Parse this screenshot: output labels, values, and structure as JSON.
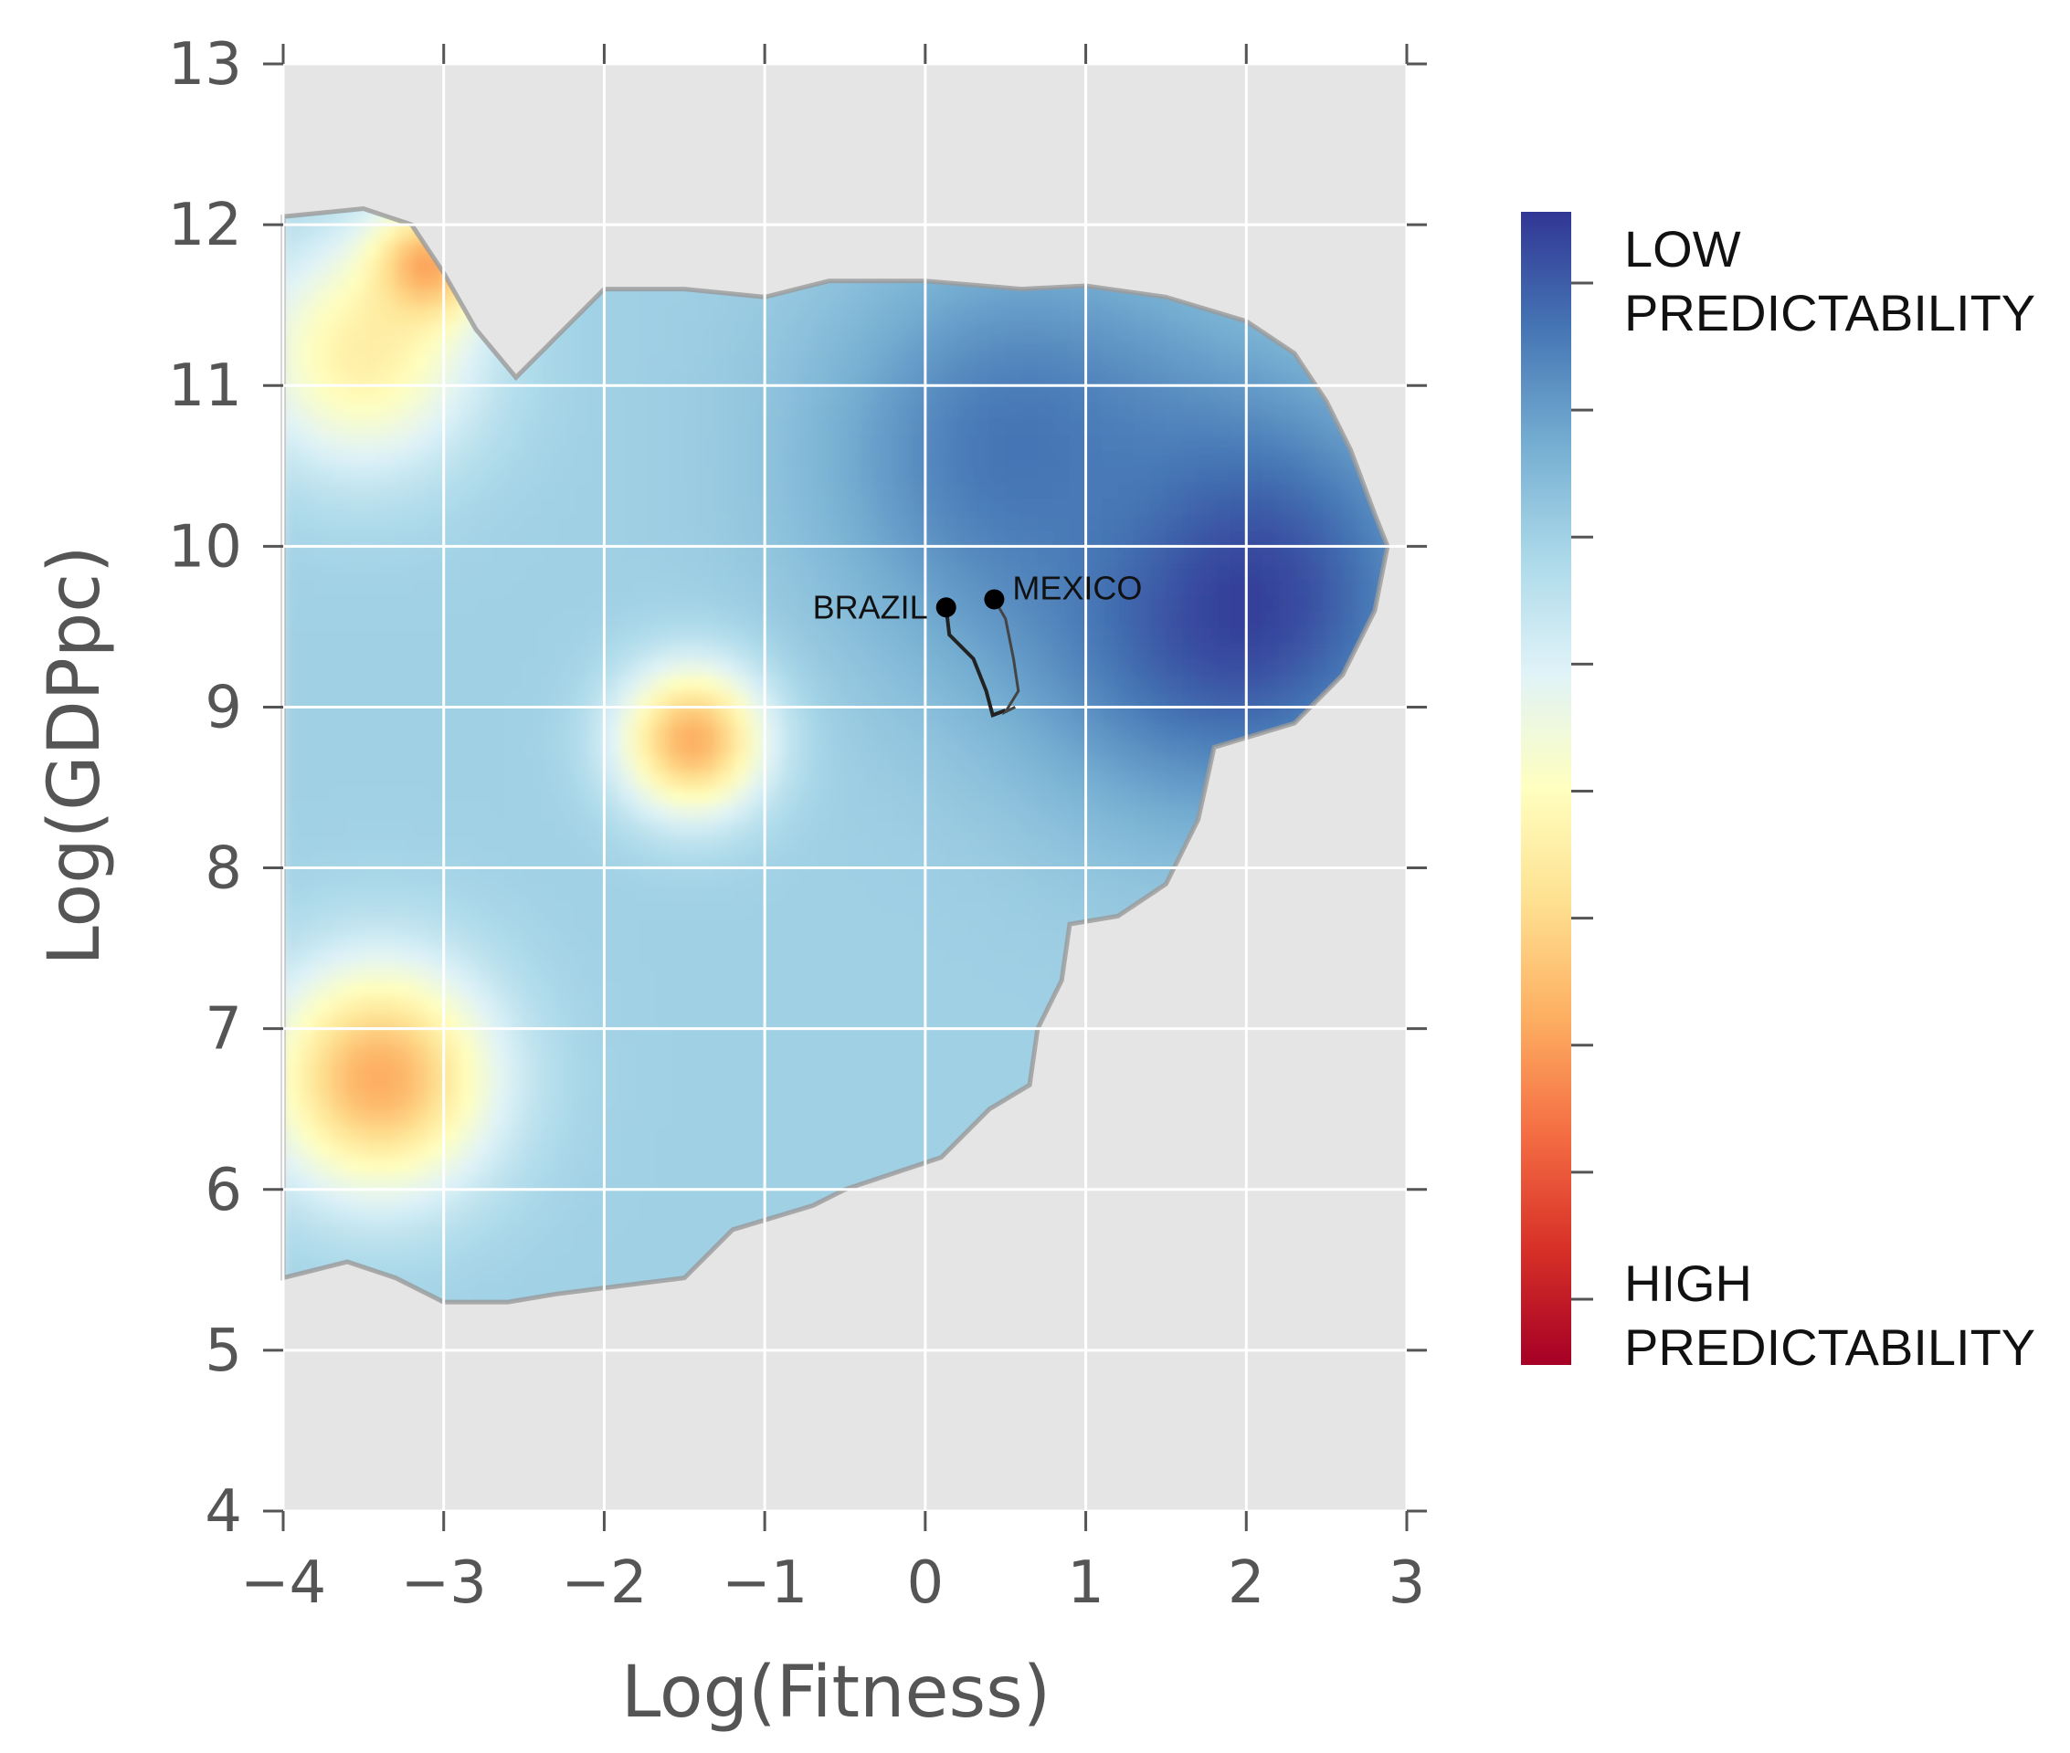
{
  "chart_data": {
    "type": "heatmap",
    "title": "",
    "xlabel": "Log(Fitness)",
    "ylabel": "Log(GDPpc)",
    "xlim": [
      -4,
      3
    ],
    "ylim": [
      4,
      13
    ],
    "xticks": [
      -4,
      -3,
      -2,
      -1,
      0,
      1,
      2,
      3
    ],
    "xtick_labels": [
      "−4",
      "−3",
      "−2",
      "−1",
      "0",
      "1",
      "2",
      "3"
    ],
    "yticks": [
      4,
      5,
      6,
      7,
      8,
      9,
      10,
      11,
      12,
      13
    ],
    "ytick_labels": [
      "4",
      "5",
      "6",
      "7",
      "8",
      "9",
      "10",
      "11",
      "12",
      "13"
    ],
    "grid": true,
    "background_color": "#e5e5e5",
    "colormap": "RdYlBu",
    "colorbar": {
      "top_label": [
        "LOW",
        "PREDICTABILITY"
      ],
      "bottom_label": [
        "HIGH",
        "PREDICTABILITY"
      ],
      "colors": [
        "#313695",
        "#4575b4",
        "#74add1",
        "#abd9e9",
        "#e0f3f8",
        "#ffffbf",
        "#fee090",
        "#fdae61",
        "#f46d43",
        "#d73027",
        "#a50026"
      ],
      "ticks": 9
    },
    "region_outline": [
      [
        -4,
        12.05
      ],
      [
        -3.5,
        12.1
      ],
      [
        -3.2,
        12.0
      ],
      [
        -3.0,
        11.7
      ],
      [
        -2.8,
        11.35
      ],
      [
        -2.55,
        11.05
      ],
      [
        -2.3,
        11.3
      ],
      [
        -2.0,
        11.6
      ],
      [
        -1.5,
        11.6
      ],
      [
        -1.0,
        11.55
      ],
      [
        -0.6,
        11.65
      ],
      [
        0.0,
        11.65
      ],
      [
        0.6,
        11.6
      ],
      [
        1.0,
        11.62
      ],
      [
        1.5,
        11.55
      ],
      [
        2.0,
        11.4
      ],
      [
        2.3,
        11.2
      ],
      [
        2.5,
        10.9
      ],
      [
        2.65,
        10.6
      ],
      [
        2.8,
        10.2
      ],
      [
        2.88,
        10.0
      ],
      [
        2.8,
        9.6
      ],
      [
        2.6,
        9.2
      ],
      [
        2.3,
        8.9
      ],
      [
        1.8,
        8.75
      ],
      [
        1.7,
        8.3
      ],
      [
        1.5,
        7.9
      ],
      [
        1.2,
        7.7
      ],
      [
        0.9,
        7.65
      ],
      [
        0.85,
        7.3
      ],
      [
        0.7,
        7.0
      ],
      [
        0.65,
        6.65
      ],
      [
        0.4,
        6.5
      ],
      [
        0.1,
        6.2
      ],
      [
        -0.5,
        6.0
      ],
      [
        -0.7,
        5.9
      ],
      [
        -1.2,
        5.75
      ],
      [
        -1.5,
        5.45
      ],
      [
        -1.9,
        5.4
      ],
      [
        -2.3,
        5.35
      ],
      [
        -2.6,
        5.3
      ],
      [
        -3.0,
        5.3
      ],
      [
        -3.3,
        5.45
      ],
      [
        -3.6,
        5.55
      ],
      [
        -4,
        5.45
      ]
    ],
    "predictability_field": {
      "base_value": 0.72,
      "peaks": [
        {
          "x": 1.9,
          "y": 9.7,
          "value": 1.0,
          "spread": 1.25
        },
        {
          "x": 0.6,
          "y": 10.6,
          "value": 0.9,
          "spread": 1.2
        },
        {
          "x": -1.45,
          "y": 8.8,
          "value": 0.3,
          "spread": 0.45
        },
        {
          "x": -3.4,
          "y": 6.7,
          "value": 0.3,
          "spread": 0.7
        },
        {
          "x": -3.5,
          "y": 11.2,
          "value": 0.45,
          "spread": 0.7
        },
        {
          "x": -3.1,
          "y": 11.75,
          "value": 0.28,
          "spread": 0.35
        }
      ]
    },
    "trajectories": [
      {
        "name": "BRAZIL",
        "points": [
          [
            0.13,
            9.62
          ],
          [
            0.15,
            9.45
          ],
          [
            0.3,
            9.3
          ],
          [
            0.38,
            9.1
          ],
          [
            0.42,
            8.95
          ],
          [
            0.5,
            8.98
          ]
        ]
      },
      {
        "name": "MEXICO",
        "points": [
          [
            0.43,
            9.67
          ],
          [
            0.5,
            9.55
          ],
          [
            0.55,
            9.3
          ],
          [
            0.58,
            9.1
          ],
          [
            0.5,
            8.97
          ],
          [
            0.56,
            9.0
          ]
        ]
      }
    ],
    "annotations": [
      {
        "text": "BRAZIL",
        "x": 0.13,
        "y": 9.62,
        "anchor": "end"
      },
      {
        "text": "MEXICO",
        "x": 0.43,
        "y": 9.67,
        "anchor": "start"
      }
    ]
  }
}
